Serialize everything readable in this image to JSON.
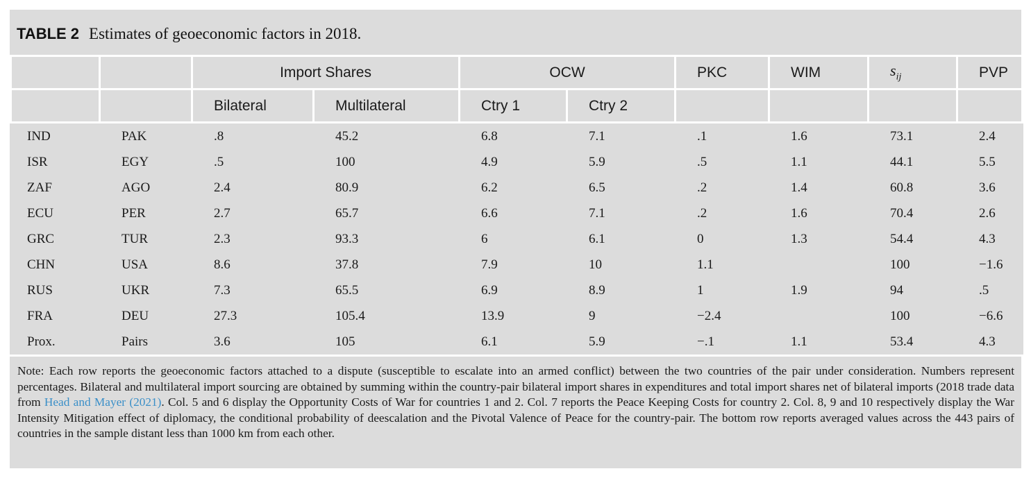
{
  "caption": {
    "label": "TABLE 2",
    "title": "Estimates of geoeconomic factors in 2018."
  },
  "header": {
    "import_shares": "Import Shares",
    "ocw": "OCW",
    "pkc": "PKC",
    "wim": "WIM",
    "sij_base": "s",
    "sij_sub": "ij",
    "pvp": "PVP",
    "bilateral": "Bilateral",
    "multilateral": "Multilateral",
    "ctry1": "Ctry 1",
    "ctry2": "Ctry 2"
  },
  "rows": [
    {
      "c1": "IND",
      "c2": "PAK",
      "c3": ".8",
      "c4": "45.2",
      "c5": "6.8",
      "c6": "7.1",
      "c7": ".1",
      "c8": "1.6",
      "c9": "73.1",
      "c10": "2.4"
    },
    {
      "c1": "ISR",
      "c2": "EGY",
      "c3": ".5",
      "c4": "100",
      "c5": "4.9",
      "c6": "5.9",
      "c7": ".5",
      "c8": "1.1",
      "c9": "44.1",
      "c10": "5.5"
    },
    {
      "c1": "ZAF",
      "c2": "AGO",
      "c3": "2.4",
      "c4": "80.9",
      "c5": "6.2",
      "c6": "6.5",
      "c7": ".2",
      "c8": "1.4",
      "c9": "60.8",
      "c10": "3.6"
    },
    {
      "c1": "ECU",
      "c2": "PER",
      "c3": "2.7",
      "c4": "65.7",
      "c5": "6.6",
      "c6": "7.1",
      "c7": ".2",
      "c8": "1.6",
      "c9": "70.4",
      "c10": "2.6"
    },
    {
      "c1": "GRC",
      "c2": "TUR",
      "c3": "2.3",
      "c4": "93.3",
      "c5": "6",
      "c6": "6.1",
      "c7": "0",
      "c8": "1.3",
      "c9": "54.4",
      "c10": "4.3"
    },
    {
      "c1": "CHN",
      "c2": "USA",
      "c3": "8.6",
      "c4": "37.8",
      "c5": "7.9",
      "c6": "10",
      "c7": "1.1",
      "c8": "",
      "c9": "100",
      "c10": "−1.6"
    },
    {
      "c1": "RUS",
      "c2": "UKR",
      "c3": "7.3",
      "c4": "65.5",
      "c5": "6.9",
      "c6": "8.9",
      "c7": "1",
      "c8": "1.9",
      "c9": "94",
      "c10": ".5"
    },
    {
      "c1": "FRA",
      "c2": "DEU",
      "c3": "27.3",
      "c4": "105.4",
      "c5": "13.9",
      "c6": "9",
      "c7": "−2.4",
      "c8": "",
      "c9": "100",
      "c10": "−6.6"
    },
    {
      "c1": "Prox.",
      "c2": "Pairs",
      "c3": "3.6",
      "c4": "105",
      "c5": "6.1",
      "c6": "5.9",
      "c7": "−.1",
      "c8": "1.1",
      "c9": "53.4",
      "c10": "4.3"
    }
  ],
  "note": {
    "before_link": "Note: Each row reports the geoeconomic factors attached to a dispute (susceptible to escalate into an armed conflict) between the two countries of the pair under consideration. Numbers represent percentages. Bilateral and multilateral import sourcing are obtained by summing within the country-pair bilateral import shares in expenditures and total import shares net of bilateral imports (2018 trade data from ",
    "link": "Head and Mayer (2021)",
    "after_link": ". Col. 5 and 6 display the Opportunity Costs of War for countries 1 and 2. Col. 7 reports the Peace Keeping Costs for country 2. Col. 8, 9 and 10 respectively display the War Intensity Mitigation effect of diplomacy, the conditional probability of deescalation and the Pivotal Valence of Peace for the country-pair. The bottom row reports averaged values across the 443 pairs of countries in the sample distant less than 1000 km from each other.",
    "link_color": "#3a8fc8"
  },
  "colors": {
    "panel_background": "#dcdcdc",
    "rule": "#ffffff"
  }
}
